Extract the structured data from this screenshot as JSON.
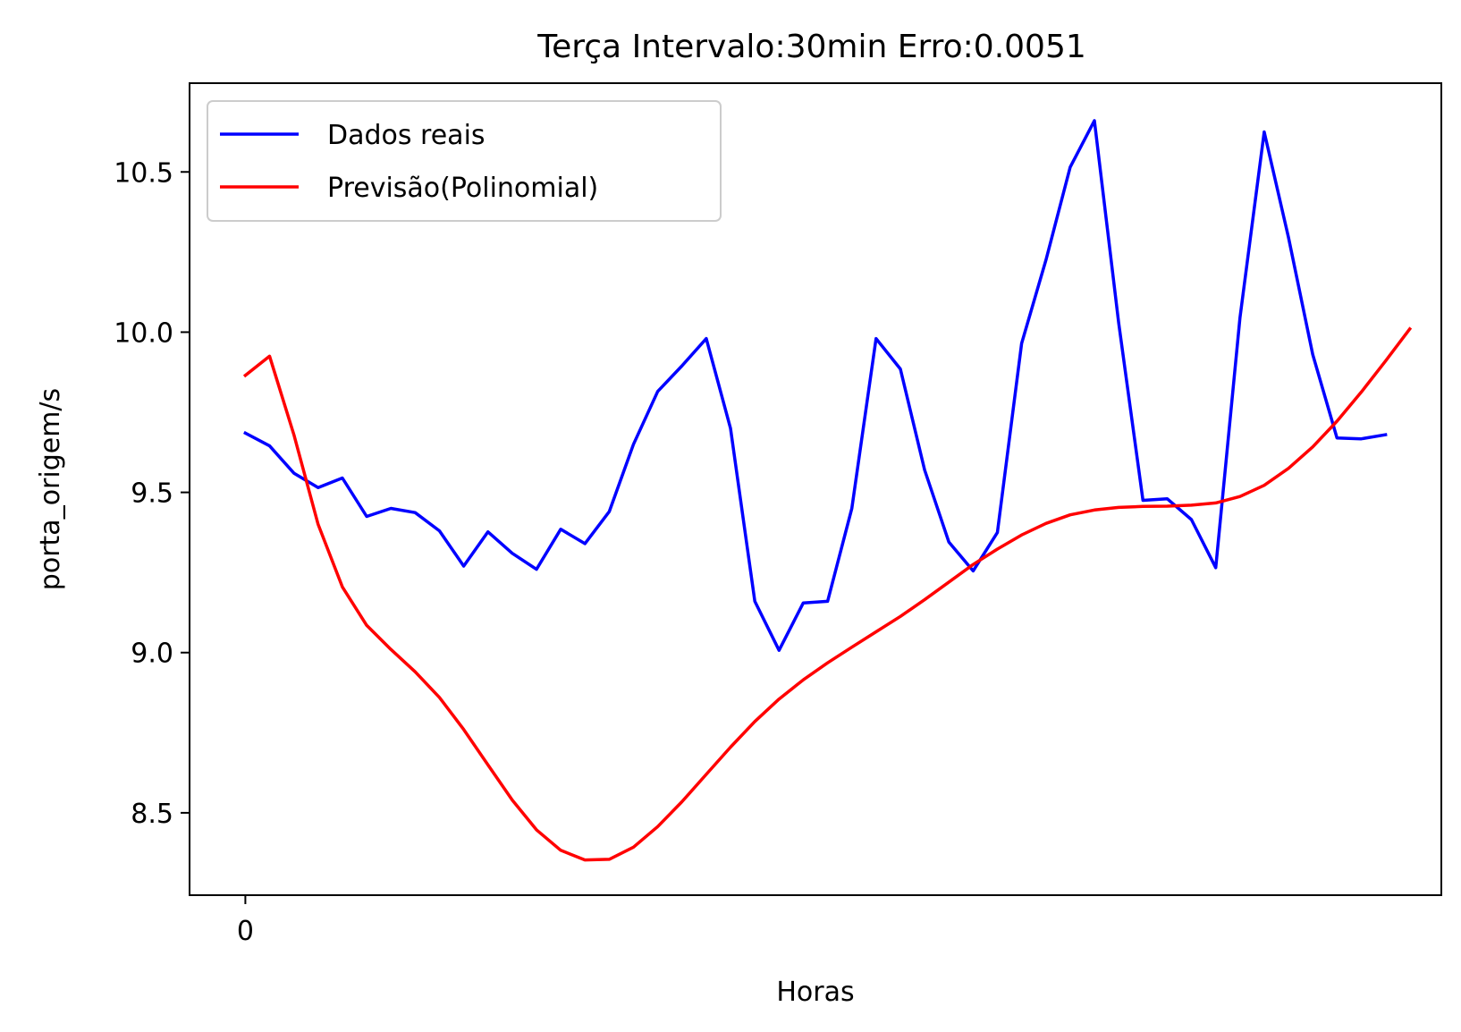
{
  "chart_data": {
    "type": "line",
    "title": "Terça Intervalo:30min Erro:0.0051",
    "xlabel": "Horas",
    "ylabel": "porta_origem/s",
    "x_ticks": [
      {
        "value": 0,
        "label": "0"
      }
    ],
    "y_ticks": [
      {
        "value": 8.5,
        "label": "8.5"
      },
      {
        "value": 9.0,
        "label": "9.0"
      },
      {
        "value": 9.5,
        "label": "9.5"
      },
      {
        "value": 10.0,
        "label": "10.0"
      },
      {
        "value": 10.5,
        "label": "10.5"
      }
    ],
    "xlim": [
      -2.3,
      49.3
    ],
    "ylim": [
      8.243,
      10.777
    ],
    "grid": false,
    "legend_position": "upper-left",
    "series": [
      {
        "name": "Dados reais",
        "color": "#0000ff",
        "values": [
          9.685,
          9.645,
          9.56,
          9.515,
          9.545,
          9.425,
          9.45,
          9.437,
          9.38,
          9.27,
          9.377,
          9.31,
          9.26,
          9.385,
          9.34,
          9.44,
          9.65,
          9.815,
          9.895,
          9.98,
          9.7,
          9.16,
          9.007,
          9.155,
          9.16,
          9.45,
          9.98,
          9.885,
          9.57,
          9.345,
          9.255,
          9.375,
          9.965,
          10.225,
          10.515,
          10.66,
          10.03,
          9.475,
          9.48,
          9.415,
          9.265,
          10.045,
          10.625,
          10.295,
          9.93,
          9.67,
          9.667,
          9.68
        ]
      },
      {
        "name": "Previsão(Polinomial)",
        "color": "#ff0000",
        "values": [
          9.865,
          9.925,
          9.68,
          9.4,
          9.205,
          9.085,
          9.01,
          8.94,
          8.86,
          8.76,
          8.65,
          8.54,
          8.447,
          8.383,
          8.353,
          8.355,
          8.393,
          8.457,
          8.535,
          8.62,
          8.705,
          8.785,
          8.855,
          8.915,
          8.968,
          9.017,
          9.065,
          9.113,
          9.165,
          9.22,
          9.275,
          9.323,
          9.367,
          9.403,
          9.43,
          9.445,
          9.453,
          9.456,
          9.457,
          9.46,
          9.467,
          9.487,
          9.522,
          9.575,
          9.642,
          9.722,
          9.813,
          9.91,
          10.01
        ]
      }
    ]
  }
}
